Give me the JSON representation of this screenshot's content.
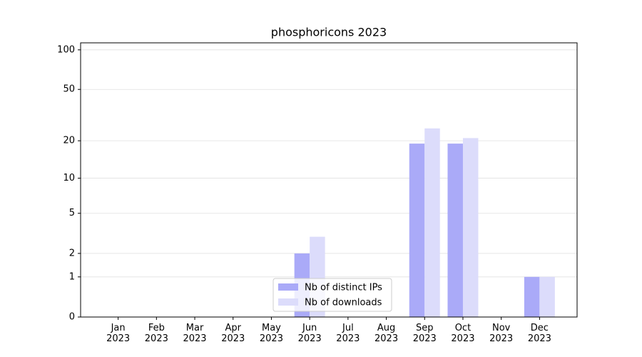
{
  "chart_data": {
    "type": "bar",
    "title": "phosphoricons 2023",
    "categories": [
      "Jan\n2023",
      "Feb\n2023",
      "Mar\n2023",
      "Apr\n2023",
      "May\n2023",
      "Jun\n2023",
      "Jul\n2023",
      "Aug\n2023",
      "Sep\n2023",
      "Oct\n2023",
      "Nov\n2023",
      "Dec\n2023"
    ],
    "series": [
      {
        "name": "Nb of distinct IPs",
        "color": "#aaaaf8",
        "values": [
          0,
          0,
          0,
          0,
          0,
          2,
          0,
          0,
          19,
          19,
          0,
          1
        ]
      },
      {
        "name": "Nb of downloads",
        "color": "#dcdcfb",
        "values": [
          0,
          0,
          0,
          0,
          0,
          3,
          0,
          0,
          25,
          21,
          0,
          1
        ]
      }
    ],
    "yscale": "log1p",
    "ylim": [
      0,
      113
    ],
    "yticks": [
      0,
      1,
      2,
      5,
      10,
      20,
      50,
      100
    ],
    "grid": true,
    "legend": "lower center"
  }
}
